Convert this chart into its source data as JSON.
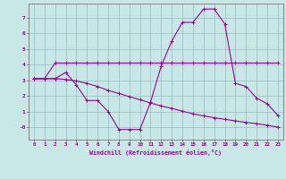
{
  "xlabel": "Windchill (Refroidissement éolien,°C)",
  "bg_color": "#c8e8e8",
  "line_color": "#990099",
  "grid_color": "#99bbbb",
  "spine_color": "#777777",
  "xlim": [
    -0.5,
    23.5
  ],
  "ylim": [
    -0.8,
    7.9
  ],
  "yticks": [
    0,
    1,
    2,
    3,
    4,
    5,
    6,
    7
  ],
  "ytick_labels": [
    "-0",
    "1",
    "2",
    "3",
    "4",
    "5",
    "6",
    "7"
  ],
  "xticks": [
    0,
    1,
    2,
    3,
    4,
    5,
    6,
    7,
    8,
    9,
    10,
    11,
    12,
    13,
    14,
    15,
    16,
    17,
    18,
    19,
    20,
    21,
    22,
    23
  ],
  "line1_x": [
    0,
    1,
    2,
    3,
    4,
    5,
    6,
    7,
    8,
    9,
    10,
    11,
    12,
    13,
    14,
    15,
    16,
    17,
    18,
    19,
    20,
    21,
    22,
    23
  ],
  "line1_y": [
    3.1,
    3.1,
    4.1,
    4.1,
    4.1,
    4.1,
    4.1,
    4.1,
    4.1,
    4.1,
    4.1,
    4.1,
    4.1,
    4.1,
    4.1,
    4.1,
    4.1,
    4.1,
    4.1,
    4.1,
    4.1,
    4.1,
    4.1,
    4.1
  ],
  "line2_x": [
    0,
    1,
    2,
    3,
    4,
    5,
    6,
    7,
    8,
    9,
    10,
    11,
    12,
    13,
    14,
    15,
    16,
    17,
    18,
    19,
    20,
    21,
    22,
    23
  ],
  "line2_y": [
    3.1,
    3.1,
    3.1,
    3.5,
    2.7,
    1.7,
    1.7,
    1.0,
    -0.15,
    -0.15,
    -0.15,
    1.6,
    3.9,
    5.5,
    6.7,
    6.7,
    7.55,
    7.55,
    6.6,
    2.8,
    2.6,
    1.85,
    1.5,
    0.75
  ],
  "line3_x": [
    0,
    1,
    2,
    3,
    4,
    5,
    6,
    7,
    8,
    9,
    10,
    11,
    12,
    13,
    14,
    15,
    16,
    17,
    18,
    19,
    20,
    21,
    22,
    23
  ],
  "line3_y": [
    3.1,
    3.1,
    3.1,
    3.05,
    2.95,
    2.8,
    2.6,
    2.35,
    2.15,
    1.95,
    1.75,
    1.55,
    1.35,
    1.2,
    1.02,
    0.85,
    0.72,
    0.6,
    0.5,
    0.4,
    0.3,
    0.22,
    0.12,
    0.0
  ]
}
